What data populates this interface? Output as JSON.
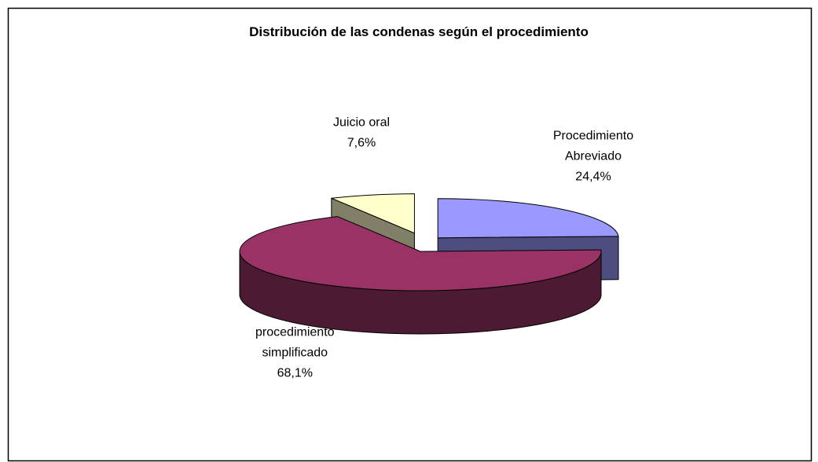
{
  "chart_data": {
    "type": "pie3d",
    "title": "Distribución de las condenas según el procedimiento",
    "categories": [
      "Procedimiento Abreviado",
      "procedimiento simplificado",
      "Juicio oral"
    ],
    "values": [
      24.4,
      68.1,
      7.6
    ],
    "value_labels": [
      "24,4%",
      "68,1%",
      "7,6%"
    ],
    "colors": [
      "#9999ff",
      "#993366",
      "#ffffcc"
    ],
    "side_colors": [
      "#4d4d80",
      "#4d1a33",
      "#808066"
    ],
    "exploded": [
      true,
      false,
      true
    ]
  }
}
